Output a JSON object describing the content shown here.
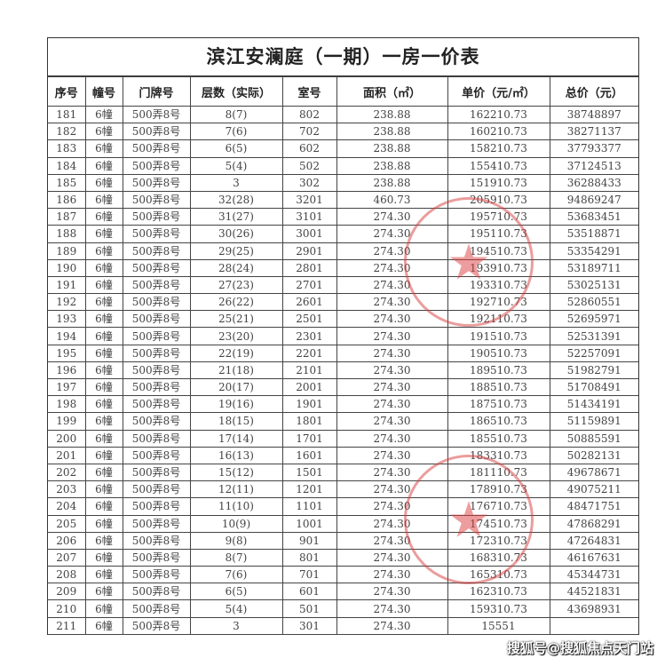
{
  "title": "滨江安澜庭（一期）一房一价表",
  "columns": [
    "序号",
    "幢号",
    "门牌号",
    "层数（实际）",
    "室号",
    "面积（㎡）",
    "单价（元/㎡）",
    "总价（元）"
  ],
  "rows": [
    [
      "181",
      "6幢",
      "500弄8号",
      "8(7)",
      "802",
      "238.88",
      "162210.73",
      "38748897"
    ],
    [
      "182",
      "6幢",
      "500弄8号",
      "7(6)",
      "702",
      "238.88",
      "160210.73",
      "38271137"
    ],
    [
      "183",
      "6幢",
      "500弄8号",
      "6(5)",
      "602",
      "238.88",
      "158210.73",
      "37793377"
    ],
    [
      "184",
      "6幢",
      "500弄8号",
      "5(4)",
      "502",
      "238.88",
      "155410.73",
      "37124513"
    ],
    [
      "185",
      "6幢",
      "500弄8号",
      "3",
      "302",
      "238.88",
      "151910.73",
      "36288433"
    ],
    [
      "186",
      "6幢",
      "500弄8号",
      "32(28)",
      "3201",
      "460.73",
      "205910.73",
      "94869247"
    ],
    [
      "187",
      "6幢",
      "500弄8号",
      "31(27)",
      "3101",
      "274.30",
      "195710.73",
      "53683451"
    ],
    [
      "188",
      "6幢",
      "500弄8号",
      "30(26)",
      "3001",
      "274.30",
      "195110.73",
      "53518871"
    ],
    [
      "189",
      "6幢",
      "500弄8号",
      "29(25)",
      "2901",
      "274.30",
      "194510.73",
      "53354291"
    ],
    [
      "190",
      "6幢",
      "500弄8号",
      "28(24)",
      "2801",
      "274.30",
      "193910.73",
      "53189711"
    ],
    [
      "191",
      "6幢",
      "500弄8号",
      "27(23)",
      "2701",
      "274.30",
      "193310.73",
      "53025131"
    ],
    [
      "192",
      "6幢",
      "500弄8号",
      "26(22)",
      "2601",
      "274.30",
      "192710.73",
      "52860551"
    ],
    [
      "193",
      "6幢",
      "500弄8号",
      "25(21)",
      "2501",
      "274.30",
      "192110.73",
      "52695971"
    ],
    [
      "194",
      "6幢",
      "500弄8号",
      "23(20)",
      "2301",
      "274.30",
      "191510.73",
      "52531391"
    ],
    [
      "195",
      "6幢",
      "500弄8号",
      "22(19)",
      "2201",
      "274.30",
      "190510.73",
      "52257091"
    ],
    [
      "196",
      "6幢",
      "500弄8号",
      "21(18)",
      "2101",
      "274.30",
      "189510.73",
      "51982791"
    ],
    [
      "197",
      "6幢",
      "500弄8号",
      "20(17)",
      "2001",
      "274.30",
      "188510.73",
      "51708491"
    ],
    [
      "198",
      "6幢",
      "500弄8号",
      "19(16)",
      "1901",
      "274.30",
      "187510.73",
      "51434191"
    ],
    [
      "199",
      "6幢",
      "500弄8号",
      "18(15)",
      "1801",
      "274.30",
      "186510.73",
      "51159891"
    ],
    [
      "200",
      "6幢",
      "500弄8号",
      "17(14)",
      "1701",
      "274.30",
      "185510.73",
      "50885591"
    ],
    [
      "201",
      "6幢",
      "500弄8号",
      "16(13)",
      "1601",
      "274.30",
      "183310.73",
      "50282131"
    ],
    [
      "202",
      "6幢",
      "500弄8号",
      "15(12)",
      "1501",
      "274.30",
      "181110.73",
      "49678671"
    ],
    [
      "203",
      "6幢",
      "500弄8号",
      "12(11)",
      "1201",
      "274.30",
      "178910.73",
      "49075211"
    ],
    [
      "204",
      "6幢",
      "500弄8号",
      "11(10)",
      "1101",
      "274.30",
      "176710.73",
      "48471751"
    ],
    [
      "205",
      "6幢",
      "500弄8号",
      "10(9)",
      "1001",
      "274.30",
      "174510.73",
      "47868291"
    ],
    [
      "206",
      "6幢",
      "500弄8号",
      "9(8)",
      "901",
      "274.30",
      "172310.73",
      "47264831"
    ],
    [
      "207",
      "6幢",
      "500弄8号",
      "8(7)",
      "801",
      "274.30",
      "168310.73",
      "46167631"
    ],
    [
      "208",
      "6幢",
      "500弄8号",
      "7(6)",
      "701",
      "274.30",
      "165310.73",
      "45344731"
    ],
    [
      "209",
      "6幢",
      "500弄8号",
      "6(5)",
      "601",
      "274.30",
      "162310.73",
      "44521831"
    ],
    [
      "210",
      "6幢",
      "500弄8号",
      "5(4)",
      "501",
      "274.30",
      "159310.73",
      "43698931"
    ],
    [
      "211",
      "6幢",
      "500弄8号",
      "3",
      "301",
      "274.30",
      "15551",
      ""
    ]
  ],
  "stamp_color": "#d63c3c",
  "watermark": "搜狐号@搜狐焦点天门站"
}
